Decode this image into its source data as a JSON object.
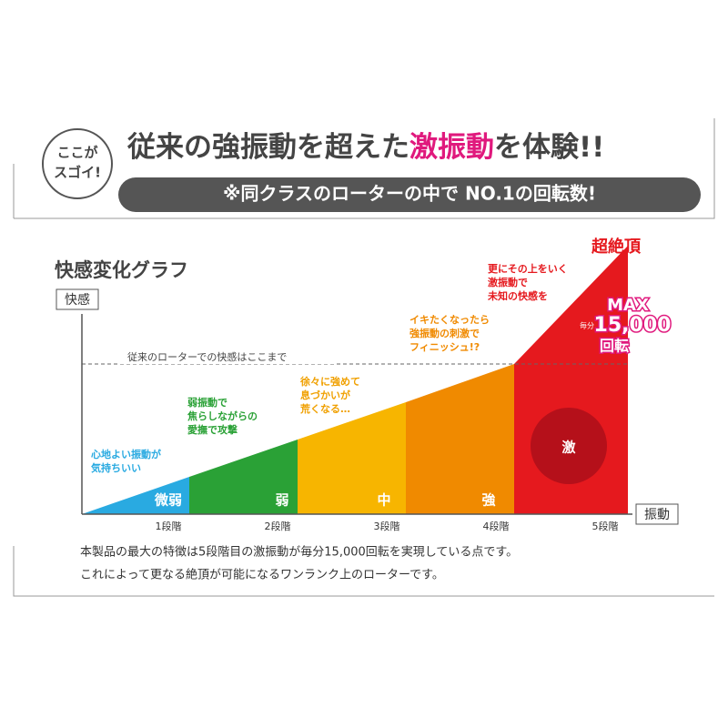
{
  "header": {
    "badge": [
      "ここが",
      "スゴイ!"
    ],
    "title": [
      "従来の強振動を超えた",
      "激振動",
      "を体験!!"
    ],
    "subtitle": "※同クラスのローターの中で NO.1の回転数!"
  },
  "graph": {
    "title": "快感変化グラフ",
    "y_label": "快感",
    "x_label": "振動",
    "reference_line": "従来のローターでの快感はここまで",
    "stages": [
      {
        "label": "微弱",
        "tick": "1段階",
        "caption": [
          "心地よい振動が",
          "気持ちいい"
        ]
      },
      {
        "label": "弱",
        "tick": "2段階",
        "caption": [
          "弱振動で",
          "焦らしながらの",
          "愛撫で攻撃"
        ]
      },
      {
        "label": "中",
        "tick": "3段階",
        "caption": [
          "徐々に強めて",
          "息づかいが",
          "荒くなる…"
        ]
      },
      {
        "label": "強",
        "tick": "4段階",
        "caption": [
          "イキたくなったら",
          "強振動の刺激で",
          "フィニッシュ!?"
        ]
      },
      {
        "label": "激",
        "tick": "5段階",
        "caption": [
          "更にその上をいく",
          "激振動で",
          "未知の快感を"
        ]
      }
    ],
    "peak": "超絶頂",
    "max": {
      "label": "MAX",
      "unit": "毎分",
      "value": "15,000",
      "suffix": "回転"
    }
  },
  "footer": [
    "本製品の最大の特徴は5段階目の激振動が毎分15,000回転を実現している点です。",
    "これによって更なる絶頂が可能になるワンランク上のローターです。"
  ]
}
